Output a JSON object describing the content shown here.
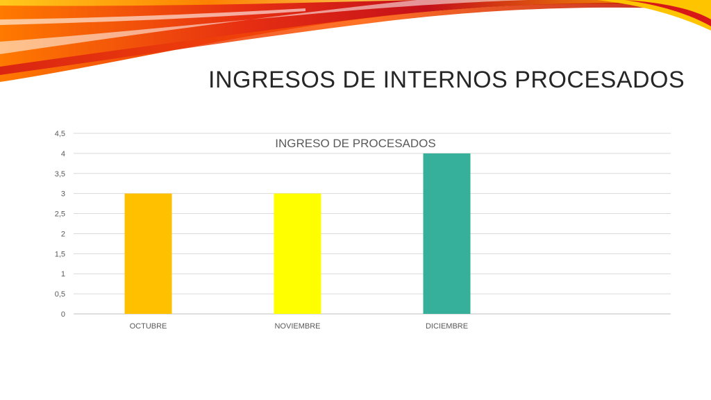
{
  "slide": {
    "title": "INGRESOS DE INTERNOS PROCESADOS"
  },
  "chart_data": {
    "type": "bar",
    "title": "INGRESO DE PROCESADOS",
    "categories": [
      "OCTUBRE",
      "NOVIEMBRE",
      "DICIEMBRE"
    ],
    "values": [
      3,
      3,
      4
    ],
    "colors": [
      "#FFC000",
      "#FFFF00",
      "#36B09A"
    ],
    "ylim": [
      0,
      4.5
    ],
    "yticks": [
      "0",
      "0,5",
      "1",
      "1,5",
      "2",
      "2,5",
      "3",
      "3,5",
      "4",
      "4,5"
    ],
    "grid": true,
    "xlabel": "",
    "ylabel": ""
  }
}
